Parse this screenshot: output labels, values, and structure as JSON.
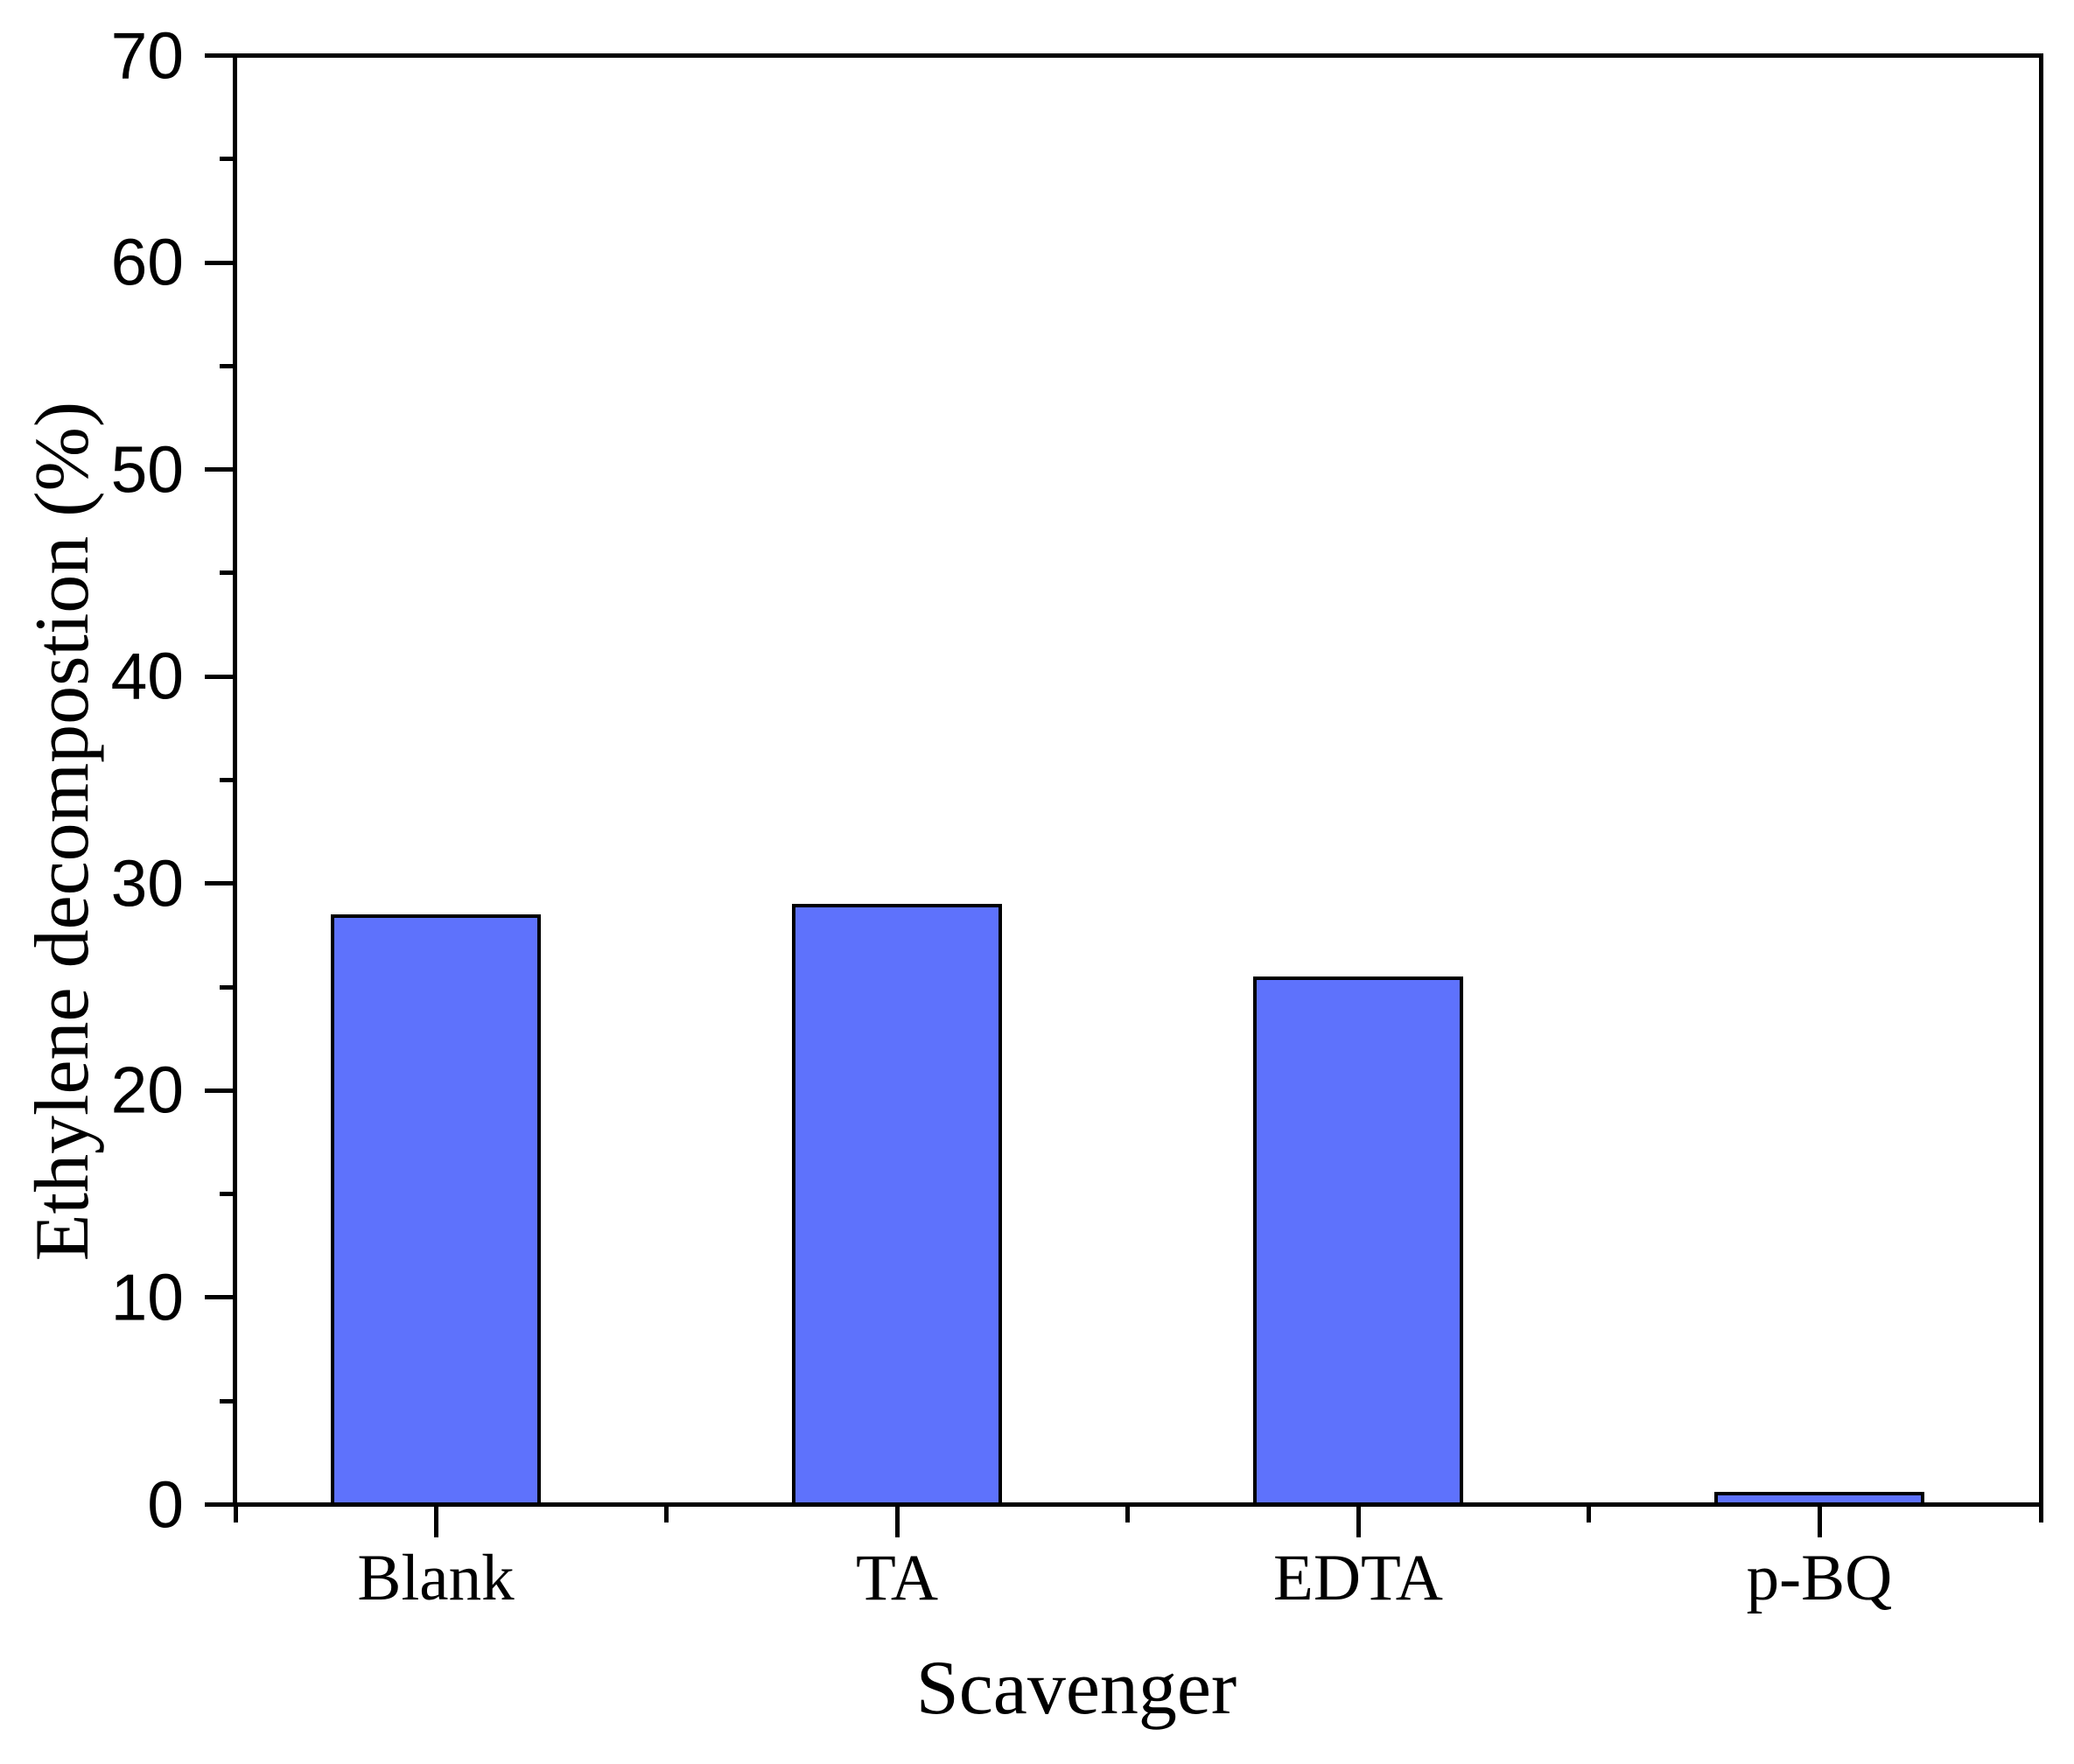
{
  "figure": {
    "background_color": "#ffffff",
    "axis_color": "#000000"
  },
  "chart_data": {
    "type": "bar",
    "title": "",
    "categories": [
      "Blank",
      "TA",
      "EDTA",
      "p-BQ"
    ],
    "values": [
      28.4,
      28.9,
      25.4,
      0.5
    ],
    "xlabel": "Scavenger",
    "ylabel": "Ethylene decompostion (%)",
    "ylim": [
      0,
      70
    ],
    "y_major_tick_step": 10,
    "y_minor_tick_step": 5,
    "y_tick_labels": [
      "0",
      "10",
      "20",
      "30",
      "40",
      "50",
      "60",
      "70"
    ],
    "bar_fill_color": "#5e72fc",
    "bar_edge_color": "#000000",
    "grid": false,
    "legend": "none"
  }
}
